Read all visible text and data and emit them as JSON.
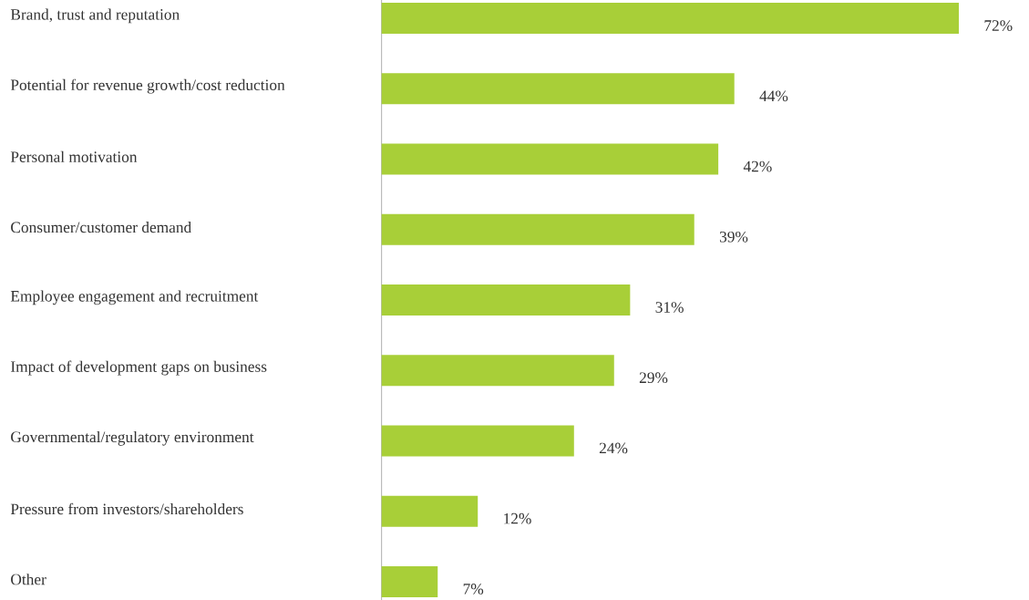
{
  "chart_data": {
    "type": "bar",
    "orientation": "horizontal",
    "categories": [
      "Brand, trust and reputation",
      "Potential for revenue growth/cost reduction",
      "Personal motivation",
      "Consumer/customer demand",
      "Employee engagement and recruitment",
      "Impact of development gaps on business",
      "Governmental/regulatory environment",
      "Pressure from investors/shareholders",
      "Other"
    ],
    "values": [
      72,
      44,
      42,
      39,
      31,
      29,
      24,
      12,
      7
    ],
    "value_labels": [
      "72%",
      "44%",
      "42%",
      "39%",
      "31%",
      "29%",
      "24%",
      "12%",
      "7%"
    ],
    "color": "#a8cf38"
  }
}
